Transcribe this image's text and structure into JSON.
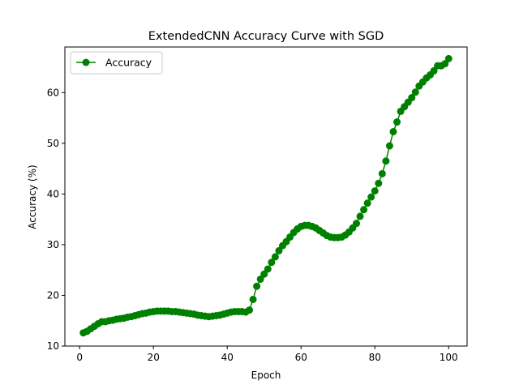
{
  "chart_data": {
    "type": "line",
    "title": "ExtendedCNN Accuracy Curve with SGD",
    "xlabel": "Epoch",
    "ylabel": "Accuracy (%)",
    "xlim": [
      -4,
      105
    ],
    "ylim": [
      10,
      69
    ],
    "xticks": [
      0,
      20,
      40,
      60,
      80,
      100
    ],
    "yticks": [
      10,
      20,
      30,
      40,
      50,
      60
    ],
    "grid": false,
    "legend": "upper-left",
    "color": "#008000",
    "marker": "circle",
    "series": [
      {
        "name": "Accuracy",
        "x": [
          1,
          2,
          3,
          4,
          5,
          6,
          7,
          8,
          9,
          10,
          11,
          12,
          13,
          14,
          15,
          16,
          17,
          18,
          19,
          20,
          21,
          22,
          23,
          24,
          25,
          26,
          27,
          28,
          29,
          30,
          31,
          32,
          33,
          34,
          35,
          36,
          37,
          38,
          39,
          40,
          41,
          42,
          43,
          44,
          45,
          46,
          47,
          48,
          49,
          50,
          51,
          52,
          53,
          54,
          55,
          56,
          57,
          58,
          59,
          60,
          61,
          62,
          63,
          64,
          65,
          66,
          67,
          68,
          69,
          70,
          71,
          72,
          73,
          74,
          75,
          76,
          77,
          78,
          79,
          80,
          81,
          82,
          83,
          84,
          85,
          86,
          87,
          88,
          89,
          90,
          91,
          92,
          93,
          94,
          95,
          96,
          97,
          98,
          99,
          100
        ],
        "values": [
          12.6,
          12.9,
          13.4,
          13.9,
          14.4,
          14.8,
          14.8,
          15.0,
          15.1,
          15.3,
          15.4,
          15.5,
          15.7,
          15.8,
          16.0,
          16.2,
          16.4,
          16.5,
          16.7,
          16.8,
          16.9,
          16.9,
          16.9,
          16.9,
          16.8,
          16.8,
          16.7,
          16.6,
          16.5,
          16.4,
          16.3,
          16.1,
          16.0,
          15.9,
          15.8,
          15.9,
          16.0,
          16.1,
          16.3,
          16.5,
          16.7,
          16.8,
          16.8,
          16.8,
          16.7,
          17.1,
          19.2,
          21.8,
          23.2,
          24.2,
          25.2,
          26.5,
          27.6,
          28.8,
          29.8,
          30.6,
          31.5,
          32.4,
          33.1,
          33.6,
          33.8,
          33.8,
          33.6,
          33.3,
          32.8,
          32.3,
          31.8,
          31.5,
          31.4,
          31.4,
          31.5,
          31.9,
          32.5,
          33.3,
          34.2,
          35.6,
          36.9,
          38.2,
          39.4,
          40.6,
          42.1,
          44.0,
          46.5,
          49.5,
          52.3,
          54.2,
          56.3,
          57.2,
          58.1,
          59.0,
          60.1,
          61.3,
          62.1,
          62.9,
          63.5,
          64.3,
          65.3,
          65.3,
          65.7,
          66.7
        ]
      }
    ]
  }
}
